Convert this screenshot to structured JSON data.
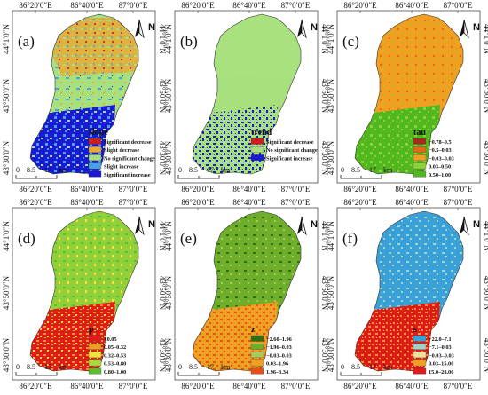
{
  "axis_labels": {
    "lon": [
      "86°20′0″E",
      "86°40′0″E",
      "87°0′0″E"
    ],
    "lat": [
      "44°1′0″N",
      "43°50′0″N",
      "43°30′0″N"
    ]
  },
  "north_label": "N",
  "scale": {
    "ticks": [
      "0",
      "8.5",
      "17"
    ],
    "unit": "km"
  },
  "panels": [
    {
      "letter": "(a)",
      "legend_title": "slope",
      "items": [
        {
          "label": "Significant decrease",
          "color": "#c81e1e"
        },
        {
          "label": "Slight decrease",
          "color": "#e8ab35"
        },
        {
          "label": "No significant change",
          "color": "#a9e07e"
        },
        {
          "label": "Slight increase",
          "color": "#4aa3e0"
        },
        {
          "label": "Significant increase",
          "color": "#1a1ad6"
        }
      ]
    },
    {
      "letter": "(b)",
      "legend_title": "trend",
      "items": [
        {
          "label": "Significant decrease",
          "color": "#d11d1d"
        },
        {
          "label": "No significant change",
          "color": "#a9e07e"
        },
        {
          "label": "Significant increase",
          "color": "#1a1ad6"
        }
      ]
    },
    {
      "letter": "(c)",
      "legend_title": "tau",
      "items": [
        {
          "label": "−0.78–0.5",
          "color": "#a52a1e"
        },
        {
          "label": "−0.5–0.03",
          "color": "#e06a18"
        },
        {
          "label": "−0.03–0.03",
          "color": "#f0a020"
        },
        {
          "label": "0.03–0.50",
          "color": "#8fd13a"
        },
        {
          "label": "0.50–1.00",
          "color": "#4fb81f"
        }
      ]
    },
    {
      "letter": "(d)",
      "legend_title": "p",
      "items": [
        {
          "label": "<0.05",
          "color": "#e41a1a"
        },
        {
          "label": "0.05–0.32",
          "color": "#f0a020"
        },
        {
          "label": "0.32–0.53",
          "color": "#f2e43a"
        },
        {
          "label": "0.53–0.80",
          "color": "#a6d93a"
        },
        {
          "label": "0.80–1.00",
          "color": "#5cbf2a"
        }
      ]
    },
    {
      "letter": "(e)",
      "legend_title": "z",
      "items": [
        {
          "label": "−2.60–1.96",
          "color": "#2f6e12"
        },
        {
          "label": "−1.96–0.03",
          "color": "#6fae2a"
        },
        {
          "label": "−0.03–0.03",
          "color": "#a8cc5a"
        },
        {
          "label": "0.03–1.96",
          "color": "#f0a020"
        },
        {
          "label": "1.96–3.34",
          "color": "#e84e1a"
        }
      ]
    },
    {
      "letter": "(f)",
      "legend_title": "s",
      "items": [
        {
          "label": "−22.0–7.1",
          "color": "#3aa0d8"
        },
        {
          "label": "−7.1–0.03",
          "color": "#9fd4c8"
        },
        {
          "label": "−0.03–0.03",
          "color": "#e8e4a0"
        },
        {
          "label": "0.03–15.00",
          "color": "#f0a020"
        },
        {
          "label": "15.0–28.00",
          "color": "#e41a1a"
        }
      ]
    }
  ]
}
